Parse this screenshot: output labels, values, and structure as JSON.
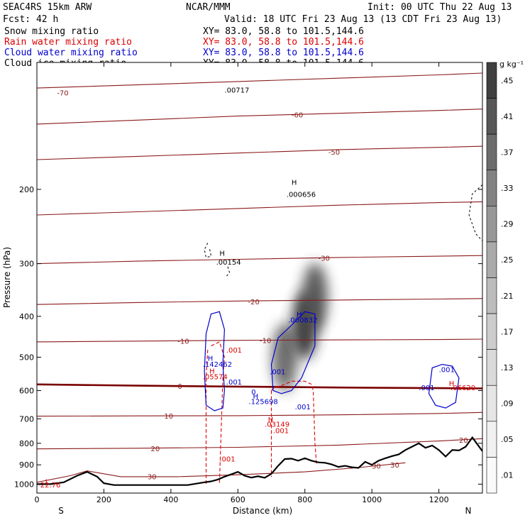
{
  "header": {
    "model": "SEAC4RS 15km ARW",
    "org": "NCAR/MMM",
    "init": "Init: 00 UTC Thu 22 Aug 13",
    "fcst": "Fcst:   42 h",
    "valid": "Valid: 18 UTC Fri 23 Aug 13 (13 CDT Fri 23 Aug 13)"
  },
  "legend": [
    {
      "name": "Snow mixing ratio",
      "xy": "XY=  83.0, 58.8 to 101.5,144.6",
      "color": "#000000",
      "style": "grayscale fill"
    },
    {
      "name": "Rain water mixing ratio",
      "xy": "XY=  83.0, 58.8 to 101.5,144.6",
      "color": "#dd0000",
      "style": "dashed contour"
    },
    {
      "name": "Cloud water mixing ratio",
      "xy": "XY=  83.0, 58.8 to 101.5,144.6",
      "color": "#0000cc",
      "style": "solid contour"
    },
    {
      "name": "Cloud ice mixing ratio",
      "xy": "XY=  83.0, 58.8 to 101.5,144.6",
      "color": "#000000",
      "style": "dashed contour"
    }
  ],
  "colorbar": {
    "unit": "g kg⁻¹",
    "labels": [
      ".45",
      ".41",
      ".37",
      ".33",
      ".29",
      ".25",
      ".21",
      ".17",
      ".13",
      ".09",
      ".05",
      ".01"
    ],
    "colors": [
      "#404040",
      "#575757",
      "#6c6c6c",
      "#828282",
      "#979797",
      "#aaaaaa",
      "#bcbcbc",
      "#cccccc",
      "#dadada",
      "#e6e6e6",
      "#f1f1f1",
      "#fafafa"
    ]
  },
  "chart_data": {
    "type": "cross-section contour",
    "xlabel": "Distance (km)",
    "ylabel": "Pressure (hPa)",
    "xlim": [
      0,
      1330
    ],
    "ylim": [
      1050,
      100
    ],
    "x_scale": "linear",
    "y_scale": "log (pressure)",
    "x_ticks": [
      0,
      200,
      400,
      600,
      800,
      1000,
      1200
    ],
    "y_ticks": [
      200,
      300,
      400,
      500,
      600,
      700,
      800,
      900,
      1000
    ],
    "end_labels": {
      "left": "S",
      "right": "N"
    },
    "colors": {
      "temperature": "#8b1a1a",
      "freezing_level": "#7a0000",
      "terrain": "#000000",
      "cloud_water": "#0000cc",
      "rain_water": "#dd0000",
      "cloud_ice": "#000000"
    },
    "temperature_isotherms_degC": [
      {
        "level": -70,
        "points": [
          [
            0,
            115
          ],
          [
            300,
            113
          ],
          [
            600,
            111
          ],
          [
            900,
            109
          ],
          [
            1200,
            107
          ],
          [
            1330,
            106
          ]
        ]
      },
      {
        "level": -60,
        "points": [
          [
            0,
            140
          ],
          [
            300,
            137
          ],
          [
            600,
            134
          ],
          [
            900,
            132
          ],
          [
            1200,
            130
          ],
          [
            1330,
            129
          ]
        ]
      },
      {
        "level": -50,
        "points": [
          [
            0,
            170
          ],
          [
            300,
            167
          ],
          [
            600,
            164
          ],
          [
            900,
            161
          ],
          [
            1200,
            159
          ],
          [
            1330,
            158
          ]
        ]
      },
      {
        "level": -40,
        "points": [
          [
            0,
            230
          ],
          [
            300,
            226
          ],
          [
            600,
            222
          ],
          [
            900,
            218
          ],
          [
            1200,
            215
          ],
          [
            1330,
            214
          ]
        ]
      },
      {
        "level": -30,
        "points": [
          [
            0,
            300
          ],
          [
            300,
            296
          ],
          [
            600,
            293
          ],
          [
            900,
            290
          ],
          [
            1200,
            288
          ],
          [
            1330,
            287
          ]
        ]
      },
      {
        "level": -20,
        "points": [
          [
            0,
            375
          ],
          [
            300,
            371
          ],
          [
            600,
            368
          ],
          [
            900,
            366
          ],
          [
            1200,
            364
          ],
          [
            1330,
            363
          ]
        ]
      },
      {
        "level": -10,
        "points": [
          [
            0,
            460
          ],
          [
            300,
            458
          ],
          [
            600,
            456
          ],
          [
            900,
            455
          ],
          [
            1200,
            454
          ],
          [
            1330,
            453
          ]
        ]
      },
      {
        "level": 0,
        "points": [
          [
            0,
            580
          ],
          [
            300,
            584
          ],
          [
            600,
            587
          ],
          [
            900,
            590
          ],
          [
            1200,
            592
          ],
          [
            1330,
            593
          ]
        ]
      },
      {
        "level": 10,
        "points": [
          [
            0,
            690
          ],
          [
            300,
            689
          ],
          [
            600,
            688
          ],
          [
            900,
            685
          ],
          [
            1200,
            680
          ],
          [
            1330,
            676
          ]
        ]
      },
      {
        "level": 20,
        "points": [
          [
            0,
            825
          ],
          [
            300,
            822
          ],
          [
            600,
            818
          ],
          [
            900,
            808
          ],
          [
            1200,
            790
          ],
          [
            1330,
            780
          ]
        ]
      },
      {
        "level": 30,
        "points": [
          [
            0,
            990
          ],
          [
            100,
            955
          ],
          [
            150,
            930
          ],
          [
            250,
            960
          ],
          [
            420,
            960
          ],
          [
            600,
            950
          ],
          [
            800,
            935
          ],
          [
            950,
            915
          ],
          [
            1100,
            890
          ]
        ]
      }
    ],
    "isotherm_labels": [
      {
        "text": "-70",
        "x": 60,
        "p": 118
      },
      {
        "text": "-60",
        "x": 760,
        "p": 133
      },
      {
        "text": "-50",
        "x": 870,
        "p": 163
      },
      {
        "text": "-30",
        "x": 840,
        "p": 291
      },
      {
        "text": "-20",
        "x": 630,
        "p": 369
      },
      {
        "text": "-10",
        "x": 420,
        "p": 457
      },
      {
        "text": "-10",
        "x": 665,
        "p": 456
      },
      {
        "text": "0",
        "x": 420,
        "p": 585
      },
      {
        "text": "10",
        "x": 380,
        "p": 688
      },
      {
        "text": "20",
        "x": 340,
        "p": 822
      },
      {
        "text": "20",
        "x": 1260,
        "p": 785
      },
      {
        "text": "30",
        "x": 330,
        "p": 958
      },
      {
        "text": "30",
        "x": 1000,
        "p": 905
      },
      {
        "text": "30",
        "x": 1055,
        "p": 900
      }
    ],
    "terrain_surface_hPa": {
      "x": [
        0,
        40,
        80,
        120,
        150,
        180,
        200,
        230,
        260,
        300,
        350,
        400,
        450,
        500,
        520,
        540,
        560,
        580,
        600,
        620,
        640,
        660,
        680,
        700,
        720,
        740,
        760,
        780,
        800,
        820,
        840,
        860,
        880,
        900,
        920,
        940,
        960,
        980,
        1000,
        1020,
        1040,
        1060,
        1080,
        1100,
        1120,
        1140,
        1160,
        1180,
        1200,
        1220,
        1240,
        1260,
        1280,
        1300,
        1320,
        1330
      ],
      "p": [
        1000,
        1000,
        990,
        955,
        935,
        960,
        995,
        1005,
        1005,
        1005,
        1005,
        1005,
        1005,
        990,
        985,
        975,
        960,
        948,
        935,
        955,
        965,
        958,
        966,
        945,
        905,
        872,
        870,
        880,
        868,
        880,
        888,
        890,
        898,
        910,
        905,
        912,
        915,
        885,
        900,
        880,
        868,
        858,
        850,
        830,
        815,
        800,
        820,
        810,
        830,
        860,
        830,
        832,
        815,
        775,
        815,
        835
      ]
    },
    "snow_maxima": [
      {
        "x": 740,
        "p": 500,
        "value": 0.33
      },
      {
        "x": 800,
        "p": 420,
        "value": 0.45
      },
      {
        "x": 830,
        "p": 360,
        "value": 0.37
      }
    ],
    "cloud_water_contours_g_per_kg": [
      {
        "level": 0.001,
        "points": [
          [
            520,
            395
          ],
          [
            545,
            390
          ],
          [
            560,
            430
          ],
          [
            555,
            520
          ],
          [
            560,
            600
          ],
          [
            555,
            660
          ],
          [
            530,
            670
          ],
          [
            505,
            650
          ],
          [
            500,
            540
          ],
          [
            505,
            440
          ]
        ]
      },
      {
        "level": 0.001,
        "points": [
          [
            720,
            450
          ],
          [
            760,
            420
          ],
          [
            800,
            390
          ],
          [
            830,
            395
          ],
          [
            830,
            470
          ],
          [
            790,
            560
          ],
          [
            760,
            600
          ],
          [
            730,
            610
          ],
          [
            705,
            600
          ],
          [
            700,
            520
          ]
        ]
      },
      {
        "level": 0.001,
        "points": [
          [
            1180,
            530
          ],
          [
            1210,
            520
          ],
          [
            1240,
            525
          ],
          [
            1260,
            560
          ],
          [
            1250,
            640
          ],
          [
            1220,
            660
          ],
          [
            1190,
            650
          ],
          [
            1170,
            610
          ]
        ]
      }
    ],
    "cloud_water_labels": [
      {
        "text": ".001",
        "x": 695,
        "p": 540
      },
      {
        "text": ".001",
        "x": 1200,
        "p": 534
      },
      {
        "text": ".001",
        "x": 1140,
        "p": 590
      },
      {
        "text": ".001",
        "x": 770,
        "p": 655
      },
      {
        "text": ".001",
        "x": 565,
        "p": 572
      },
      {
        "text": "0",
        "x": 640,
        "p": 603
      },
      {
        "text": "H",
        "x": 510,
        "p": 502
      },
      {
        "text": ".142462",
        "x": 495,
        "p": 519
      },
      {
        "text": "H",
        "x": 645,
        "p": 618
      },
      {
        "text": ".125698",
        "x": 632,
        "p": 636
      },
      {
        "text": "H",
        "x": 775,
        "p": 395
      },
      {
        "text": ".000832",
        "x": 750,
        "p": 407
      }
    ],
    "rain_water_contours_g_per_kg": [
      {
        "level": 0.001,
        "points": [
          [
            520,
            470
          ],
          [
            545,
            460
          ],
          [
            560,
            500
          ],
          [
            555,
            560
          ],
          [
            545,
            1000
          ]
        ]
      },
      {
        "level": 0.001,
        "points": [
          [
            510,
            480
          ],
          [
            505,
            560
          ],
          [
            505,
            1000
          ]
        ]
      },
      {
        "level": 0.001,
        "points": [
          [
            700,
            600
          ],
          [
            710,
            590
          ],
          [
            740,
            580
          ],
          [
            760,
            570
          ],
          [
            800,
            570
          ],
          [
            820,
            580
          ],
          [
            825,
            600
          ],
          [
            830,
            800
          ],
          [
            835,
            900
          ]
        ]
      },
      {
        "level": 0.001,
        "points": [
          [
            700,
            600
          ],
          [
            700,
            800
          ],
          [
            700,
            960
          ]
        ]
      }
    ],
    "rain_water_labels": [
      {
        "text": ".001",
        "x": 565,
        "p": 480
      },
      {
        "text": ".001",
        "x": 705,
        "p": 745
      },
      {
        "text": ".001",
        "x": 545,
        "p": 870
      },
      {
        "text": "H",
        "x": 515,
        "p": 538
      },
      {
        "text": ".05574",
        "x": 495,
        "p": 555
      },
      {
        "text": "H",
        "x": 690,
        "p": 700
      },
      {
        "text": ".03149",
        "x": 680,
        "p": 720
      },
      {
        "text": "H",
        "x": 1230,
        "p": 576
      },
      {
        "text": ".06620",
        "x": 1235,
        "p": 590
      },
      {
        "text": "L",
        "x": 25,
        "p": 985
      },
      {
        "text": "22.76",
        "x": 10,
        "p": 1003
      }
    ],
    "cloud_ice_contours_g_per_kg": [
      {
        "level": 0.001,
        "points": [
          [
            510,
            268
          ],
          [
            500,
            278
          ],
          [
            505,
            290
          ],
          [
            520,
            288
          ],
          [
            515,
            275
          ]
        ]
      },
      {
        "level": 0.001,
        "points": [
          [
            570,
            305
          ],
          [
            575,
            315
          ],
          [
            565,
            322
          ]
        ]
      },
      {
        "level": 0.001,
        "points": [
          [
            1330,
            195
          ],
          [
            1300,
            205
          ],
          [
            1290,
            230
          ],
          [
            1310,
            255
          ],
          [
            1330,
            265
          ]
        ]
      }
    ],
    "cloud_ice_labels": [
      {
        "text": "H",
        "x": 545,
        "p": 283
      },
      {
        "text": ".00154",
        "x": 535,
        "p": 297
      },
      {
        "text": "H",
        "x": 760,
        "p": 192
      },
      {
        "text": ".000656",
        "x": 745,
        "p": 205
      },
      {
        "text": ".00717",
        "x": 560,
        "p": 116
      }
    ]
  }
}
